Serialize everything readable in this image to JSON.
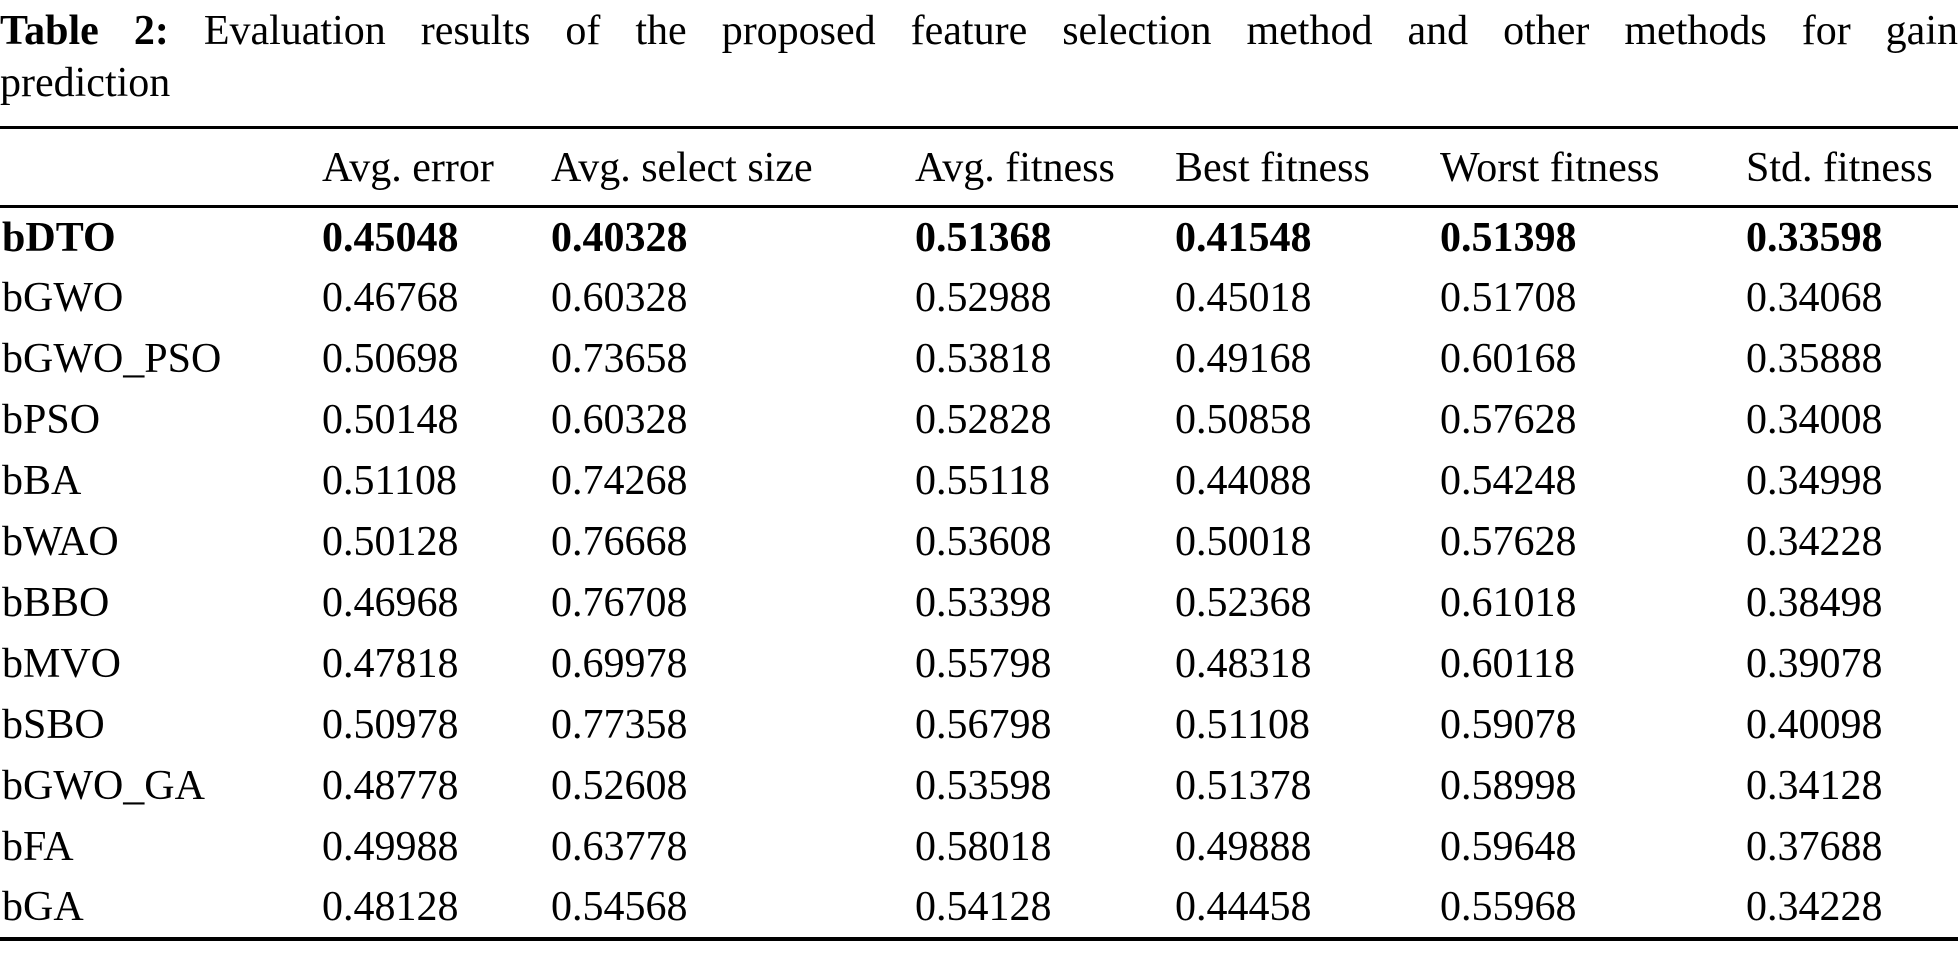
{
  "caption": {
    "label": "Table 2:",
    "line1": "Evaluation results of the proposed feature selection method and other methods for gain",
    "line2": "prediction"
  },
  "table": {
    "headers": [
      "",
      "Avg. error",
      "Avg. select size",
      "Avg. fitness",
      "Best fitness",
      "Worst fitness",
      "Std. fitness"
    ],
    "rows": [
      {
        "method": "bDTO",
        "bold": true,
        "values": [
          "0.45048",
          "0.40328",
          "0.51368",
          "0.41548",
          "0.51398",
          "0.33598"
        ]
      },
      {
        "method": "bGWO",
        "bold": false,
        "values": [
          "0.46768",
          "0.60328",
          "0.52988",
          "0.45018",
          "0.51708",
          "0.34068"
        ]
      },
      {
        "method": "bGWO_PSO",
        "bold": false,
        "values": [
          "0.50698",
          "0.73658",
          "0.53818",
          "0.49168",
          "0.60168",
          "0.35888"
        ]
      },
      {
        "method": "bPSO",
        "bold": false,
        "values": [
          "0.50148",
          "0.60328",
          "0.52828",
          "0.50858",
          "0.57628",
          "0.34008"
        ]
      },
      {
        "method": "bBA",
        "bold": false,
        "values": [
          "0.51108",
          "0.74268",
          "0.55118",
          "0.44088",
          "0.54248",
          "0.34998"
        ]
      },
      {
        "method": "bWAO",
        "bold": false,
        "values": [
          "0.50128",
          "0.76668",
          "0.53608",
          "0.50018",
          "0.57628",
          "0.34228"
        ]
      },
      {
        "method": "bBBO",
        "bold": false,
        "values": [
          "0.46968",
          "0.76708",
          "0.53398",
          "0.52368",
          "0.61018",
          "0.38498"
        ]
      },
      {
        "method": "bMVO",
        "bold": false,
        "values": [
          "0.47818",
          "0.69978",
          "0.55798",
          "0.48318",
          "0.60118",
          "0.39078"
        ]
      },
      {
        "method": "bSBO",
        "bold": false,
        "values": [
          "0.50978",
          "0.77358",
          "0.56798",
          "0.51108",
          "0.59078",
          "0.40098"
        ]
      },
      {
        "method": "bGWO_GA",
        "bold": false,
        "values": [
          "0.48778",
          "0.52608",
          "0.53598",
          "0.51378",
          "0.58998",
          "0.34128"
        ]
      },
      {
        "method": "bFA",
        "bold": false,
        "values": [
          "0.49988",
          "0.63778",
          "0.58018",
          "0.49888",
          "0.59648",
          "0.37688"
        ]
      },
      {
        "method": "bGA",
        "bold": false,
        "values": [
          "0.48128",
          "0.54568",
          "0.54128",
          "0.44458",
          "0.55968",
          "0.34228"
        ]
      }
    ]
  },
  "colors": {
    "text": "#000000",
    "background": "#ffffff",
    "rule": "#000000"
  }
}
